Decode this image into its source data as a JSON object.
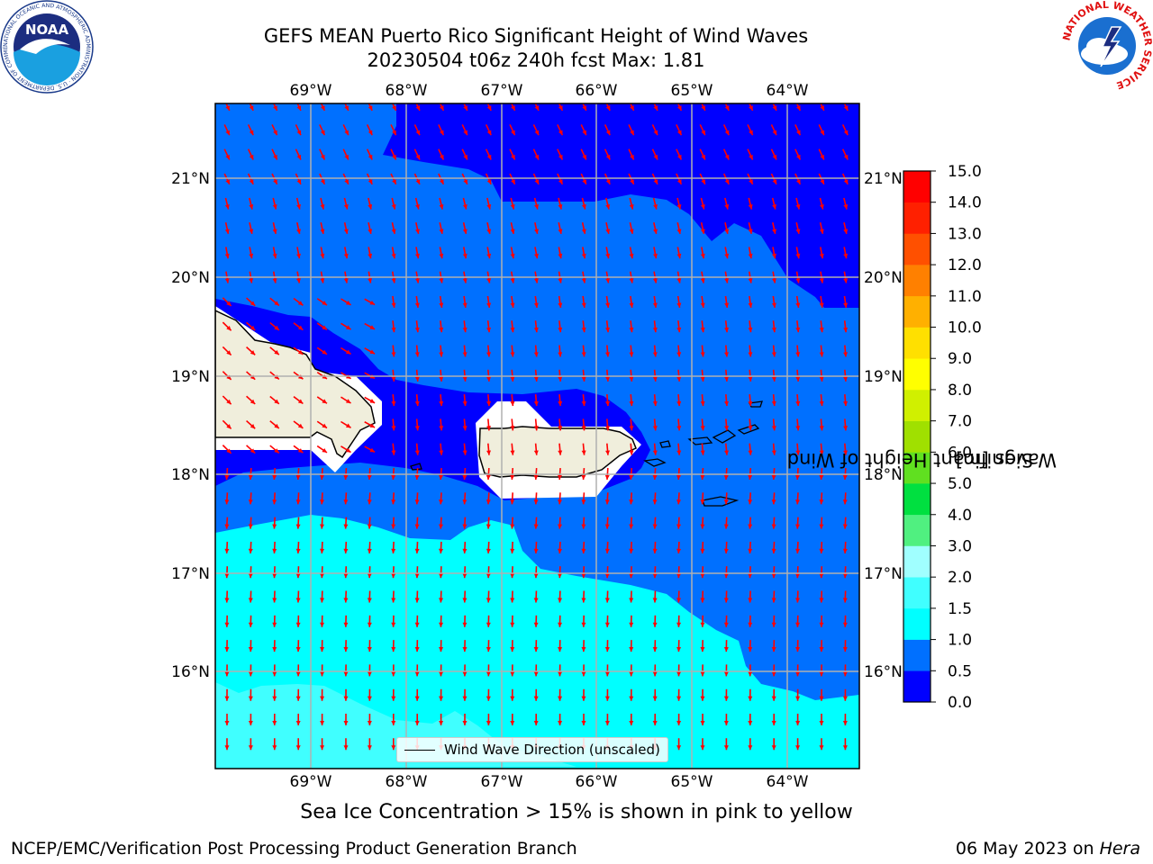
{
  "header": {
    "title_line1": "GEFS MEAN Puerto Rico Significant Height of Wind Waves",
    "title_line2": "20230504 t06z 240h fcst   Max: 1.81"
  },
  "logos": {
    "left": {
      "text": "NOAA",
      "ring_text": "NATIONAL OCEANIC AND ATMOSPHERIC ADMINISTRATION · U.S. DEPARTMENT OF COMMERCE"
    },
    "right": {
      "ring_text": "NATIONAL WEATHER SERVICE"
    }
  },
  "map": {
    "lon_ticks": [
      "69°W",
      "68°W",
      "67°W",
      "66°W",
      "65°W",
      "64°W"
    ],
    "lat_ticks": [
      "21°N",
      "20°N",
      "19°N",
      "18°N",
      "17°N",
      "16°N"
    ],
    "grid": true,
    "arrow_color": "#ff0000",
    "legend_label": "Wind Wave Direction (unscaled)"
  },
  "colorbar": {
    "label_line1": "Significant Height of Wind",
    "label_line2": "Waves [m]",
    "ticks": [
      "0.0",
      "0.5",
      "1.0",
      "1.5",
      "2.0",
      "3.0",
      "4.0",
      "5.0",
      "6.0",
      "7.0",
      "8.0",
      "9.0",
      "10.0",
      "11.0",
      "12.0",
      "13.0",
      "14.0",
      "15.0"
    ],
    "colors": [
      "#0000ff",
      "#0070ff",
      "#00ffff",
      "#40ffff",
      "#a0ffff",
      "#50f080",
      "#00e040",
      "#60e020",
      "#a0e000",
      "#d0f000",
      "#ffff00",
      "#ffe000",
      "#ffb000",
      "#ff8000",
      "#ff5000",
      "#ff2000",
      "#ff0000"
    ]
  },
  "footer": {
    "note": "Sea Ice Concentration > 15% is shown in pink to yellow",
    "branch": "NCEP/EMC/Verification Post Processing Product Generation Branch",
    "date_prefix": "06 May 2023 on ",
    "date_host": "Hera"
  }
}
